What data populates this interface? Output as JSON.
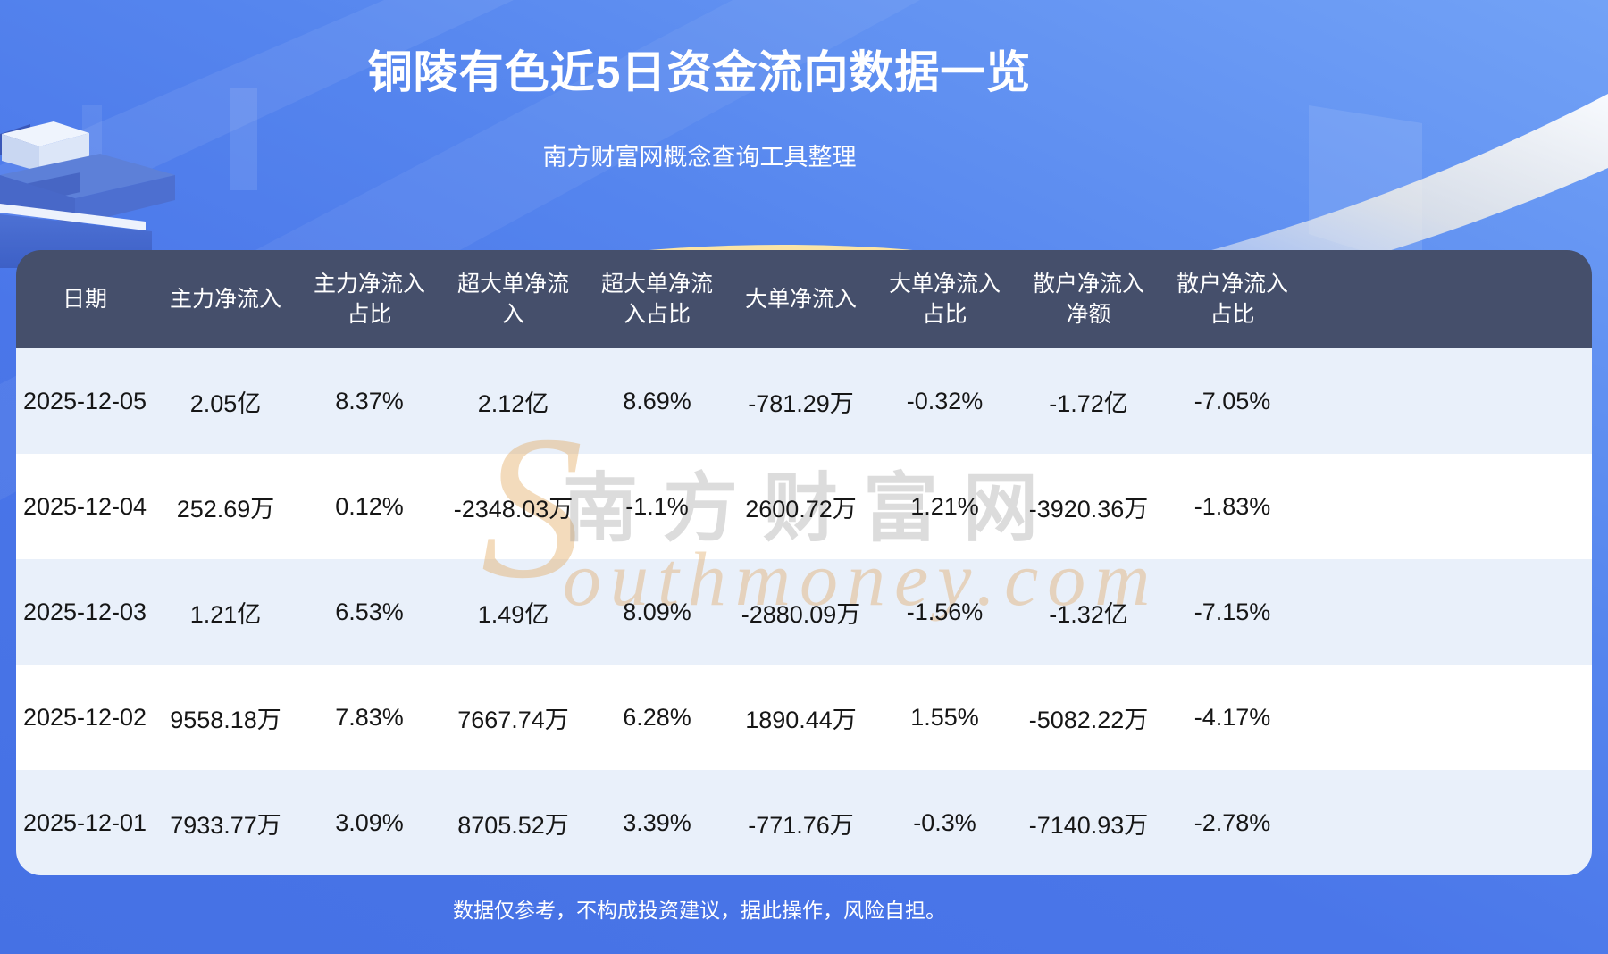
{
  "page": {
    "title": "铜陵有色近5日资金流向数据一览",
    "subtitle": "南方财富网概念查询工具整理",
    "footer": "数据仅参考，不构成投资建议，据此操作，风险自担。"
  },
  "watermark": {
    "initial": "S",
    "cn": "南方财富网",
    "en": "outhmoney.com"
  },
  "colors": {
    "background_top": "#72a2f6",
    "background_bottom": "#4571e4",
    "header_bg": "#454f6b",
    "row_light": "#e9f0fa",
    "row_white": "#ffffff",
    "title_text": "#ffffff",
    "body_text": "#161616",
    "gold_arc": "#eec263"
  },
  "chart_data": {
    "type": "table",
    "title": "铜陵有色近5日资金流向数据一览",
    "columns": [
      "日期",
      "主力净流入",
      "主力净流入\n占比",
      "超大单净流\n入",
      "超大单净流\n入占比",
      "大单净流入",
      "大单净流入\n占比",
      "散户净流入\n净额",
      "散户净流入\n占比"
    ],
    "rows": [
      [
        "2025-12-05",
        "2.05亿",
        "8.37%",
        "2.12亿",
        "8.69%",
        "-781.29万",
        "-0.32%",
        "-1.72亿",
        "-7.05%"
      ],
      [
        "2025-12-04",
        "252.69万",
        "0.12%",
        "-2348.03万",
        "-1.1%",
        "2600.72万",
        "1.21%",
        "-3920.36万",
        "-1.83%"
      ],
      [
        "2025-12-03",
        "1.21亿",
        "6.53%",
        "1.49亿",
        "8.09%",
        "-2880.09万",
        "-1.56%",
        "-1.32亿",
        "-7.15%"
      ],
      [
        "2025-12-02",
        "9558.18万",
        "7.83%",
        "7667.74万",
        "6.28%",
        "1890.44万",
        "1.55%",
        "-5082.22万",
        "-4.17%"
      ],
      [
        "2025-12-01",
        "7933.77万",
        "3.09%",
        "8705.52万",
        "3.39%",
        "-771.76万",
        "-0.3%",
        "-7140.93万",
        "-2.78%"
      ]
    ]
  }
}
